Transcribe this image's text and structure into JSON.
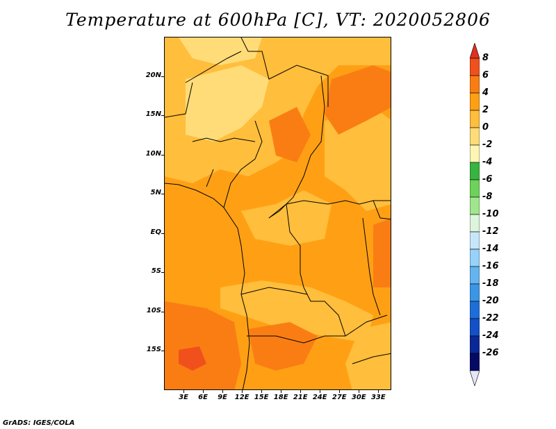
{
  "title": "Temperature at 600hPa [C], VT: 2020052806",
  "credit": "GrADS: IGES/COLA",
  "map": {
    "lon_range": [
      0,
      35
    ],
    "lat_range": [
      -20,
      25
    ],
    "lat_ticks": [
      {
        "value": 20,
        "label": "20N"
      },
      {
        "value": 15,
        "label": "15N"
      },
      {
        "value": 10,
        "label": "10N"
      },
      {
        "value": 5,
        "label": "5N"
      },
      {
        "value": 0,
        "label": "EQ"
      },
      {
        "value": -5,
        "label": "5S"
      },
      {
        "value": -10,
        "label": "10S"
      },
      {
        "value": -15,
        "label": "15S"
      }
    ],
    "lon_ticks": [
      {
        "value": 3,
        "label": "3E"
      },
      {
        "value": 6,
        "label": "6E"
      },
      {
        "value": 9,
        "label": "9E"
      },
      {
        "value": 12,
        "label": "12E"
      },
      {
        "value": 15,
        "label": "15E"
      },
      {
        "value": 18,
        "label": "18E"
      },
      {
        "value": 21,
        "label": "21E"
      },
      {
        "value": 24,
        "label": "24E"
      },
      {
        "value": 27,
        "label": "27E"
      },
      {
        "value": 30,
        "label": "30E"
      },
      {
        "value": 33,
        "label": "33E"
      }
    ]
  },
  "colorbar": {
    "levels": [
      "8",
      "6",
      "4",
      "2",
      "0",
      "-2",
      "-4",
      "-6",
      "-8",
      "-10",
      "-12",
      "-14",
      "-16",
      "-18",
      "-20",
      "-22",
      "-24",
      "-26"
    ],
    "colors": [
      "#e0301e",
      "#f0501c",
      "#fa7d14",
      "#ffa014",
      "#ffbe3c",
      "#ffdc78",
      "#fff5b4",
      "#38b440",
      "#6ed25a",
      "#a0e68c",
      "#dcf5dc",
      "#c8e6fa",
      "#96d2fa",
      "#64b4f0",
      "#3c96e6",
      "#1e6eda",
      "#1450c8",
      "#0a2896",
      "#050a64",
      "#e6e6fa"
    ]
  }
}
